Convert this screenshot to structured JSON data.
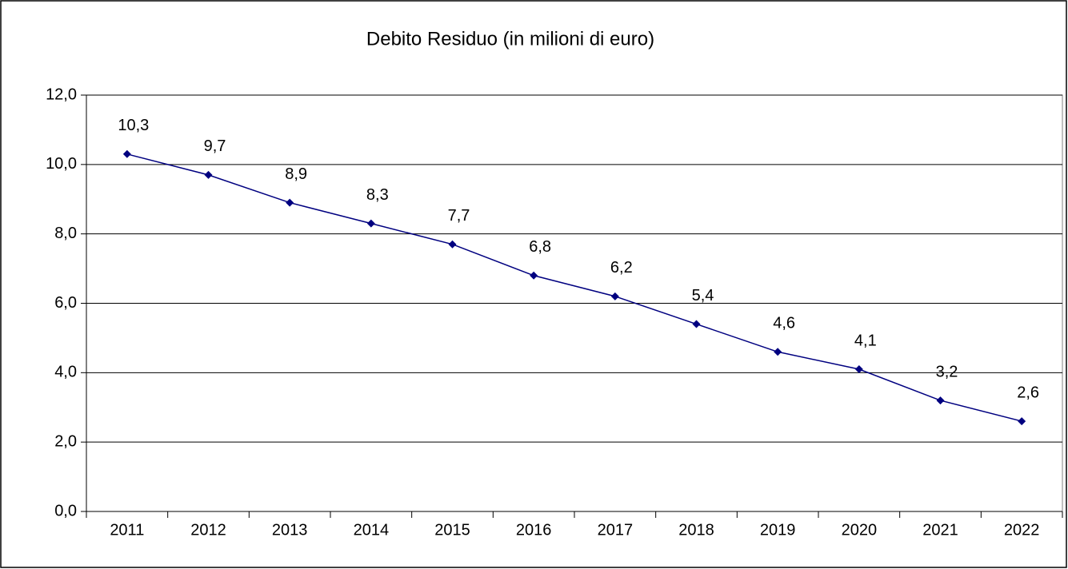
{
  "chart_data": {
    "type": "line",
    "title": "Debito Residuo (in milioni di euro)",
    "categories": [
      "2011",
      "2012",
      "2013",
      "2014",
      "2015",
      "2016",
      "2017",
      "2018",
      "2019",
      "2020",
      "2021",
      "2022"
    ],
    "series": [
      {
        "color": "#000080",
        "values": [
          10.3,
          9.7,
          8.9,
          8.3,
          7.7,
          6.8,
          6.2,
          5.4,
          4.6,
          4.1,
          3.2,
          2.6
        ],
        "value_labels": [
          "10,3",
          "9,7",
          "8,9",
          "8,3",
          "7,7",
          "6,8",
          "6,2",
          "5,4",
          "4,6",
          "4,1",
          "3,2",
          "2,6"
        ]
      }
    ],
    "ylim": [
      0,
      12
    ],
    "yticks": [
      {
        "value": 0,
        "label": "0,0"
      },
      {
        "value": 2,
        "label": "2,0"
      },
      {
        "value": 4,
        "label": "4,0"
      },
      {
        "value": 6,
        "label": "6,0"
      },
      {
        "value": 8,
        "label": "8,0"
      },
      {
        "value": 10,
        "label": "10,0"
      },
      {
        "value": 12,
        "label": "12,0"
      }
    ],
    "grid": true
  }
}
